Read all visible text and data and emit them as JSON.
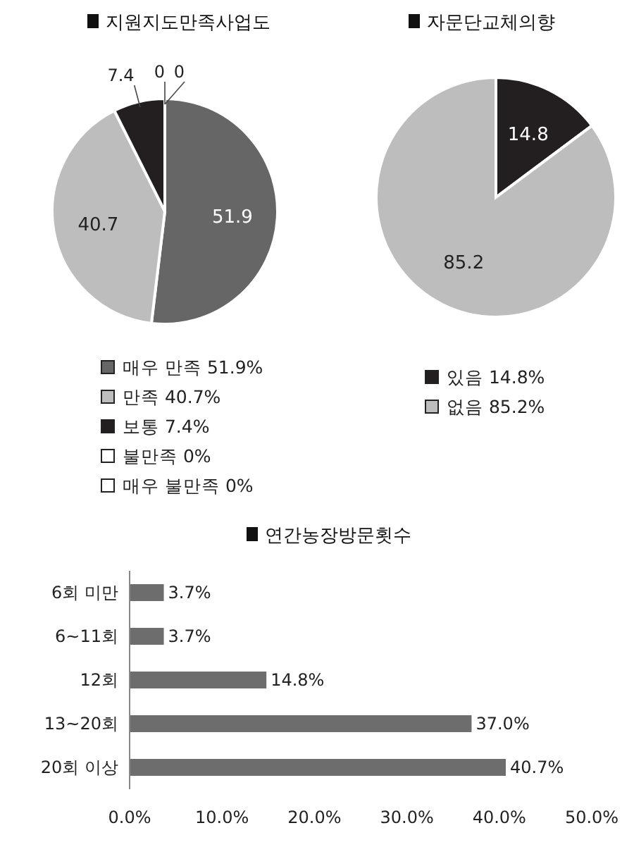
{
  "chart_data": [
    {
      "type": "pie",
      "title": "지원지도만족사업도",
      "categories": [
        "매우 만족 51.9%",
        "만족 40.7%",
        "보통 7.4%",
        "불만족 0%",
        "매우 불만족 0%"
      ],
      "values": [
        51.9,
        40.7,
        7.4,
        0,
        0
      ],
      "value_labels": [
        "51.9",
        "40.7",
        "7.4",
        "0",
        "0"
      ],
      "colors": [
        "#666666",
        "#bdbdbd",
        "#231f20",
        "#ffffff",
        "#ffffff"
      ],
      "legend": "bottom"
    },
    {
      "type": "pie",
      "title": "자문단교체의향",
      "categories": [
        "있음 14.8%",
        "없음 85.2%"
      ],
      "values": [
        14.8,
        85.2
      ],
      "value_labels": [
        "14.8",
        "85.2"
      ],
      "colors": [
        "#231f20",
        "#bdbdbd"
      ],
      "legend": "bottom"
    },
    {
      "type": "bar",
      "orientation": "horizontal",
      "title": "연간농장방문횟수",
      "categories": [
        "6회 미만",
        "6~11회",
        "12회",
        "13~20회",
        "20회 이상"
      ],
      "values": [
        3.7,
        3.7,
        14.8,
        37.0,
        40.7
      ],
      "value_labels": [
        "3.7%",
        "3.7%",
        "14.8%",
        "37.0%",
        "40.7%"
      ],
      "color": "#6d6d6d",
      "xlim": [
        0,
        50
      ],
      "xticks": [
        {
          "value": 0,
          "label": "0.0%"
        },
        {
          "value": 10,
          "label": "10.0%"
        },
        {
          "value": 20,
          "label": "20.0%"
        },
        {
          "value": 30,
          "label": "30.0%"
        },
        {
          "value": 40,
          "label": "40.0%"
        },
        {
          "value": 50,
          "label": "50.0%"
        }
      ],
      "grid": false
    }
  ]
}
